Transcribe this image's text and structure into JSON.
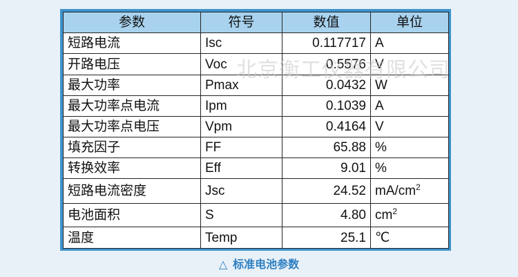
{
  "table": {
    "headers": [
      "参数",
      "符号",
      "数值",
      "单位"
    ],
    "rows": [
      {
        "name": "短路电流",
        "symbol": "Isc",
        "value": "0.117717",
        "unit": "A",
        "unit_sup": ""
      },
      {
        "name": "开路电压",
        "symbol": "Voc",
        "value": "0.5576",
        "unit": "V",
        "unit_sup": ""
      },
      {
        "name": "最大功率",
        "symbol": "Pmax",
        "value": "0.0432",
        "unit": "W",
        "unit_sup": ""
      },
      {
        "name": "最大功率点电流",
        "symbol": "Ipm",
        "value": "0.1039",
        "unit": "A",
        "unit_sup": ""
      },
      {
        "name": "最大功率点电压",
        "symbol": "Vpm",
        "value": "0.4164",
        "unit": "V",
        "unit_sup": ""
      },
      {
        "name": "填充因子",
        "symbol": "FF",
        "value": "65.88",
        "unit": "%",
        "unit_sup": ""
      },
      {
        "name": "转换效率",
        "symbol": "Eff",
        "value": "9.01",
        "unit": "%",
        "unit_sup": ""
      },
      {
        "name": "短路电流密度",
        "symbol": "Jsc",
        "value": "24.52",
        "unit": "mA/cm",
        "unit_sup": "2"
      },
      {
        "name": "电池面积",
        "symbol": "S",
        "value": "4.80",
        "unit": "cm",
        "unit_sup": "2"
      },
      {
        "name": "温度",
        "symbol": "Temp",
        "value": "25.1",
        "unit": "℃",
        "unit_sup": ""
      }
    ]
  },
  "watermark": "北京衡工仪器有限公司",
  "caption": {
    "icon": "triangle-icon",
    "symbol": "△",
    "text": "标准电池参数"
  },
  "colors": {
    "background": "#e9f1f8",
    "frame": "#3d94cc",
    "header_fill": "#a8d2ee",
    "caption": "#2d7fc1"
  }
}
